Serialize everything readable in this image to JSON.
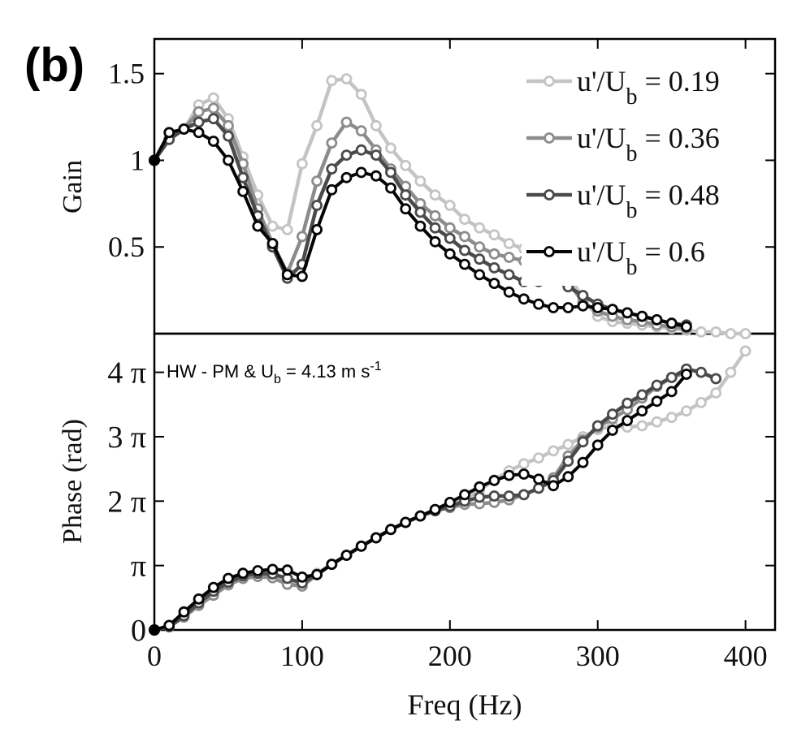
{
  "panel_label": "(b)",
  "annotation": {
    "prefix": "HW - PM & U",
    "sub": "b",
    "middle": " = 4.13 m s",
    "sup": "-1"
  },
  "legend_entries": [
    {
      "text": "u'/U",
      "sub": "b",
      "value": " = 0.19"
    },
    {
      "text": "u'/U",
      "sub": "b",
      "value": " = 0.36"
    },
    {
      "text": "u'/U",
      "sub": "b",
      "value": " = 0.48"
    },
    {
      "text": "u'/U",
      "sub": "b",
      "value": " = 0.6"
    }
  ],
  "colors": {
    "s019": "#c4c4c4",
    "s036": "#8c8c8c",
    "s048": "#4a4a4a",
    "s06": "#050505"
  },
  "chart_data": [
    {
      "type": "line",
      "title": "",
      "xlabel": "",
      "ylabel": "Gain",
      "xlim": [
        0,
        420
      ],
      "ylim": [
        0,
        1.7
      ],
      "ytick_values": [
        0.5,
        1,
        1.5
      ],
      "ytick_labels": [
        "0.5",
        "1",
        "1.5"
      ],
      "legend_position": "top-right",
      "grid": false,
      "series": [
        {
          "name": "u'/Ub = 0.19",
          "x": [
            0,
            10,
            20,
            30,
            40,
            50,
            60,
            70,
            80,
            90,
            100,
            110,
            120,
            130,
            140,
            150,
            160,
            170,
            180,
            190,
            200,
            210,
            220,
            230,
            240,
            250,
            260,
            270,
            280,
            290,
            300,
            310,
            320,
            330,
            340,
            350,
            360,
            370,
            380,
            390,
            400
          ],
          "y": [
            1.0,
            1.12,
            1.18,
            1.32,
            1.36,
            1.24,
            1.02,
            0.8,
            0.62,
            0.6,
            0.98,
            1.2,
            1.46,
            1.47,
            1.38,
            1.2,
            1.07,
            0.97,
            0.88,
            0.8,
            0.74,
            0.66,
            0.61,
            0.57,
            0.52,
            0.49,
            0.46,
            0.43,
            0.35,
            0.2,
            0.1,
            0.07,
            0.06,
            0.05,
            0.04,
            0.03,
            0.02,
            0.01,
            0.01,
            0.0,
            0.0
          ]
        },
        {
          "name": "u'/Ub = 0.36",
          "x": [
            0,
            10,
            20,
            30,
            40,
            50,
            60,
            70,
            80,
            90,
            100,
            110,
            120,
            130,
            140,
            150,
            160,
            170,
            180,
            190,
            200,
            210,
            220,
            230,
            240,
            250,
            260,
            270,
            280,
            290,
            300,
            310,
            320,
            330,
            340,
            350,
            360
          ],
          "y": [
            1.0,
            1.12,
            1.18,
            1.28,
            1.3,
            1.2,
            0.98,
            0.72,
            0.52,
            0.35,
            0.56,
            0.88,
            1.1,
            1.22,
            1.17,
            1.06,
            0.95,
            0.85,
            0.75,
            0.68,
            0.61,
            0.56,
            0.5,
            0.46,
            0.44,
            0.42,
            0.42,
            0.4,
            0.3,
            0.18,
            0.13,
            0.1,
            0.08,
            0.07,
            0.05,
            0.04,
            0.03
          ]
        },
        {
          "name": "u'/Ub = 0.48",
          "x": [
            0,
            10,
            20,
            30,
            40,
            50,
            60,
            70,
            80,
            90,
            100,
            110,
            120,
            130,
            140,
            150,
            160,
            170,
            180,
            190,
            200,
            210,
            220,
            230,
            240,
            250,
            260,
            270,
            280,
            290,
            300,
            310,
            320,
            330,
            340,
            350,
            360
          ],
          "y": [
            1.0,
            1.12,
            1.18,
            1.22,
            1.24,
            1.14,
            0.9,
            0.68,
            0.5,
            0.32,
            0.4,
            0.74,
            0.95,
            1.03,
            1.06,
            1.03,
            0.93,
            0.8,
            0.7,
            0.61,
            0.55,
            0.48,
            0.43,
            0.38,
            0.34,
            0.3,
            0.3,
            0.31,
            0.27,
            0.22,
            0.17,
            0.14,
            0.12,
            0.1,
            0.08,
            0.06,
            0.05
          ]
        },
        {
          "name": "u'/Ub = 0.6",
          "x": [
            0,
            10,
            20,
            30,
            40,
            50,
            60,
            70,
            80,
            90,
            100,
            110,
            120,
            130,
            140,
            150,
            160,
            170,
            180,
            190,
            200,
            210,
            220,
            230,
            240,
            250,
            260,
            270,
            280,
            290,
            300,
            310,
            320,
            330,
            340,
            350,
            360
          ],
          "y": [
            1.0,
            1.16,
            1.18,
            1.16,
            1.11,
            1.0,
            0.82,
            0.62,
            0.52,
            0.34,
            0.33,
            0.6,
            0.83,
            0.9,
            0.93,
            0.91,
            0.84,
            0.72,
            0.62,
            0.53,
            0.46,
            0.4,
            0.34,
            0.29,
            0.24,
            0.2,
            0.17,
            0.15,
            0.15,
            0.16,
            0.15,
            0.14,
            0.12,
            0.1,
            0.08,
            0.06,
            0.04
          ]
        }
      ]
    },
    {
      "type": "line",
      "title": "",
      "xlabel": "Freq (Hz)",
      "ylabel": "Phase (rad)",
      "xlim": [
        0,
        420
      ],
      "ylim": [
        0,
        4.6
      ],
      "y_unit": "pi",
      "xtick_values": [
        0,
        100,
        200,
        300,
        400
      ],
      "xtick_labels": [
        "0",
        "100",
        "200",
        "300",
        "400"
      ],
      "ytick_values": [
        0,
        1,
        2,
        3,
        4
      ],
      "ytick_labels": [
        "0",
        "π",
        "2 π",
        "3 π",
        "4 π"
      ],
      "grid": false,
      "series": [
        {
          "name": "u'/Ub = 0.19",
          "x": [
            0,
            10,
            20,
            30,
            40,
            50,
            60,
            70,
            80,
            90,
            100,
            110,
            120,
            130,
            140,
            150,
            160,
            170,
            180,
            190,
            200,
            210,
            220,
            230,
            240,
            250,
            260,
            270,
            280,
            290,
            300,
            310,
            320,
            330,
            340,
            350,
            360,
            370,
            380,
            390,
            400
          ],
          "y": [
            0,
            0.05,
            0.22,
            0.4,
            0.56,
            0.72,
            0.8,
            0.86,
            0.83,
            0.74,
            0.75,
            0.88,
            1.02,
            1.16,
            1.3,
            1.43,
            1.56,
            1.67,
            1.77,
            1.86,
            1.93,
            2.03,
            2.17,
            2.33,
            2.47,
            2.58,
            2.67,
            2.78,
            2.88,
            3.0,
            3.11,
            3.17,
            3.15,
            3.17,
            3.23,
            3.3,
            3.4,
            3.53,
            3.68,
            4.0,
            4.33
          ]
        },
        {
          "name": "u'/Ub = 0.36",
          "x": [
            0,
            10,
            20,
            30,
            40,
            50,
            60,
            70,
            80,
            90,
            100,
            110,
            120,
            130,
            140,
            150,
            160,
            170,
            180,
            190,
            200,
            210,
            220,
            230,
            240,
            250,
            260,
            270,
            280,
            290,
            300,
            310,
            320,
            330,
            340,
            350,
            360
          ],
          "y": [
            0,
            0.05,
            0.2,
            0.38,
            0.54,
            0.7,
            0.8,
            0.83,
            0.81,
            0.71,
            0.68,
            0.86,
            1.02,
            1.16,
            1.3,
            1.43,
            1.56,
            1.67,
            1.77,
            1.85,
            1.9,
            1.95,
            1.96,
            1.98,
            2.02,
            2.1,
            2.2,
            2.36,
            2.7,
            2.95,
            3.15,
            3.28,
            3.42,
            3.6,
            3.78,
            3.92,
            4.0
          ]
        },
        {
          "name": "u'/Ub = 0.48",
          "x": [
            0,
            10,
            20,
            30,
            40,
            50,
            60,
            70,
            80,
            90,
            100,
            110,
            120,
            130,
            140,
            150,
            160,
            170,
            180,
            190,
            200,
            210,
            220,
            230,
            240,
            250,
            260,
            270,
            280,
            290,
            300,
            310,
            320,
            330,
            340,
            350,
            360,
            370,
            380
          ],
          "y": [
            0,
            0.05,
            0.22,
            0.42,
            0.6,
            0.74,
            0.84,
            0.88,
            0.87,
            0.8,
            0.73,
            0.86,
            1.02,
            1.16,
            1.3,
            1.43,
            1.56,
            1.67,
            1.77,
            1.85,
            1.92,
            2.0,
            2.06,
            2.08,
            2.08,
            2.1,
            2.2,
            2.32,
            2.62,
            2.92,
            3.17,
            3.35,
            3.52,
            3.65,
            3.8,
            3.92,
            4.05,
            4.0,
            3.9
          ]
        },
        {
          "name": "u'/Ub = 0.6",
          "x": [
            0,
            10,
            20,
            30,
            40,
            50,
            60,
            70,
            80,
            90,
            100,
            110,
            120,
            130,
            140,
            150,
            160,
            170,
            180,
            190,
            200,
            210,
            220,
            230,
            240,
            250,
            260,
            270,
            280,
            290,
            300,
            310,
            320,
            330,
            340,
            350,
            360
          ],
          "y": [
            0,
            0.07,
            0.28,
            0.48,
            0.66,
            0.8,
            0.88,
            0.92,
            0.94,
            0.93,
            0.82,
            0.86,
            1.02,
            1.16,
            1.3,
            1.43,
            1.56,
            1.67,
            1.77,
            1.87,
            1.98,
            2.1,
            2.22,
            2.32,
            2.4,
            2.42,
            2.34,
            2.24,
            2.38,
            2.6,
            2.87,
            3.1,
            3.25,
            3.4,
            3.55,
            3.7,
            3.97
          ]
        }
      ]
    }
  ]
}
